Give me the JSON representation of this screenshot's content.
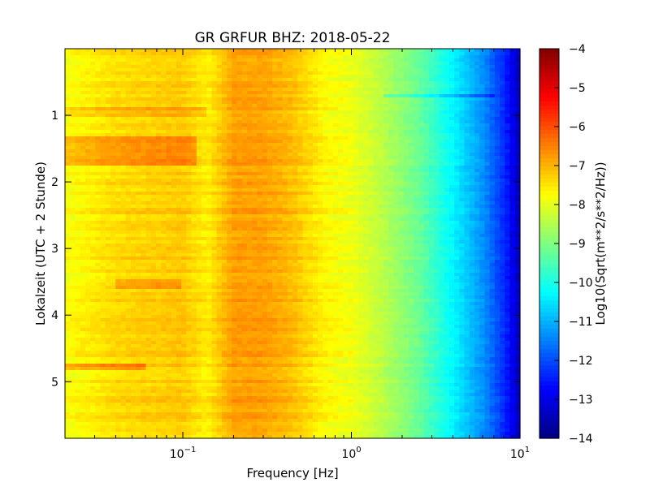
{
  "chart_data": {
    "type": "heatmap",
    "title": "GR GRFUR BHZ: 2018-05-22",
    "xlabel": "Frequency [Hz]",
    "ylabel": "Lokalzeit (UTC + 2 Stunde)",
    "xscale": "log",
    "xlim": [
      0.02,
      10
    ],
    "ylim": [
      5.85,
      0
    ],
    "x_ticks": [
      {
        "value": 0.1,
        "base": "10",
        "exp": "−1"
      },
      {
        "value": 1,
        "base": "10",
        "exp": "0"
      },
      {
        "value": 10,
        "base": "10",
        "exp": "1"
      }
    ],
    "y_ticks": [
      {
        "value": 1,
        "label": "1"
      },
      {
        "value": 2,
        "label": "2"
      },
      {
        "value": 3,
        "label": "3"
      },
      {
        "value": 4,
        "label": "4"
      },
      {
        "value": 5,
        "label": "5"
      }
    ],
    "colorbar": {
      "label": "Log10(Sqrt(m**2/s**2/Hz))",
      "colormap": "jet",
      "vmin": -14,
      "vmax": -4,
      "ticks": [
        "-4",
        "-5",
        "-6",
        "-7",
        "-8",
        "-9",
        "-10",
        "-11",
        "-12",
        "-13",
        "-14"
      ]
    },
    "spectral_profile": {
      "description_points_freq_hz": [
        0.02,
        0.04,
        0.06,
        0.1,
        0.14,
        0.2,
        0.3,
        0.45,
        0.7,
        1,
        1.5,
        2.5,
        4,
        6,
        8,
        10
      ],
      "level_log10": [
        -7.8,
        -7.4,
        -7.3,
        -7.2,
        -7.6,
        -6.8,
        -6.8,
        -7.1,
        -7.7,
        -7.9,
        -8.4,
        -9.2,
        -10.3,
        -11.3,
        -12.3,
        -13.4
      ]
    },
    "time_features": [
      {
        "start": 0.9,
        "end": 1.0,
        "freq_range": [
          0.02,
          0.14
        ],
        "delta": 0.4
      },
      {
        "start": 1.3,
        "end": 1.75,
        "freq_range": [
          0.02,
          0.12
        ],
        "delta": 0.6
      },
      {
        "start": 3.45,
        "end": 3.6,
        "freq_range": [
          0.04,
          0.1
        ],
        "delta": 0.5
      },
      {
        "start": 4.75,
        "end": 4.85,
        "freq_range": [
          0.02,
          0.06
        ],
        "delta": 0.8
      },
      {
        "start": 0.7,
        "end": 0.75,
        "freq_range": [
          1.5,
          7
        ],
        "delta": -0.6
      }
    ]
  }
}
